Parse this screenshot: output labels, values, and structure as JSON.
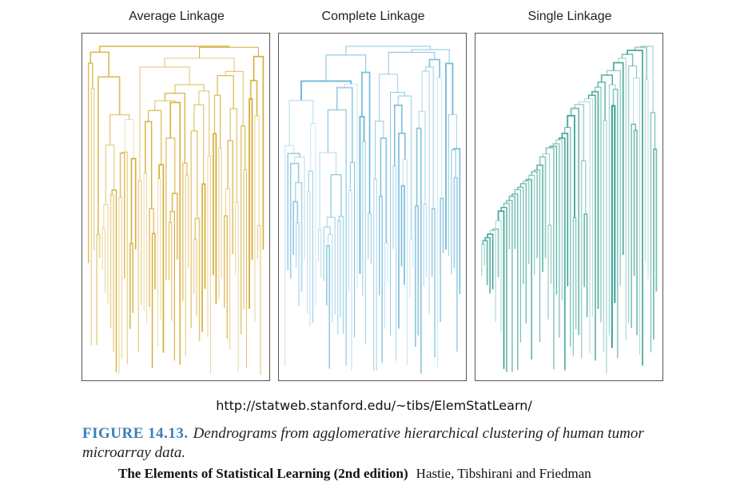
{
  "panels": [
    {
      "id": "average",
      "title": "Average Linkage",
      "color": "#d4a82a",
      "seed": 7
    },
    {
      "id": "complete",
      "title": "Complete Linkage",
      "color": "#6bb7d6",
      "seed": 23
    },
    {
      "id": "single",
      "title": "Single Linkage",
      "color": "#2a9a8a",
      "seed": 51
    }
  ],
  "url": "http://statweb.stanford.edu/~tibs/ElemStatLearn/",
  "caption": {
    "label": "FIGURE 14.13.",
    "text": "Dendrograms from agglomerative hierarchical clustering of human tumor microarray data."
  },
  "footer": {
    "book": "The Elements of Statistical Learning (2nd edition)",
    "authors": "Hastie, Tibshirani and Friedman"
  }
}
